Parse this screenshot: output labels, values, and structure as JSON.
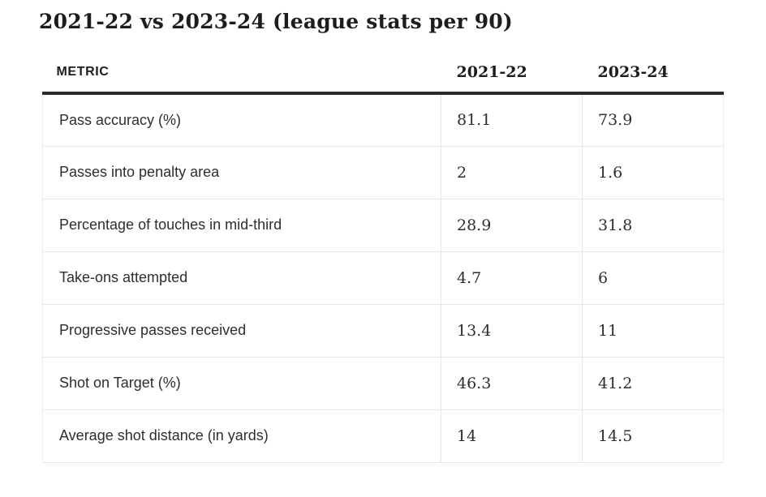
{
  "title": "2021-22 vs 2023-24 (league stats per 90)",
  "colors": {
    "background": "#ffffff",
    "title_text": "#1d1d1d",
    "header_text": "#1d1d1d",
    "cell_text": "#2e2e2e",
    "header_rule": "#2b2b2b",
    "grid_line": "#e7e7e7"
  },
  "table": {
    "columns": [
      "METRIC",
      "2021-22",
      "2023-24"
    ],
    "rows": [
      {
        "metric": "Pass accuracy (%)",
        "y2122": "81.1",
        "y2324": "73.9"
      },
      {
        "metric": "Passes into penalty area",
        "y2122": "2",
        "y2324": "1.6"
      },
      {
        "metric": "Percentage of touches in mid-third",
        "y2122": "28.9",
        "y2324": "31.8"
      },
      {
        "metric": "Take-ons attempted",
        "y2122": "4.7",
        "y2324": "6"
      },
      {
        "metric": "Progressive passes received",
        "y2122": "13.4",
        "y2324": "11"
      },
      {
        "metric": "Shot on Target (%)",
        "y2122": "46.3",
        "y2324": "41.2"
      },
      {
        "metric": "Average shot distance (in yards)",
        "y2122": "14",
        "y2324": "14.5"
      }
    ]
  },
  "chart_data": {
    "type": "table",
    "title": "2021-22 vs 2023-24 (league stats per 90)",
    "categories": [
      "Pass accuracy (%)",
      "Passes into penalty area",
      "Percentage of touches in mid-third",
      "Take-ons attempted",
      "Progressive passes received",
      "Shot on Target (%)",
      "Average shot distance (in yards)"
    ],
    "series": [
      {
        "name": "2021-22",
        "values": [
          81.1,
          2,
          28.9,
          4.7,
          13.4,
          46.3,
          14
        ]
      },
      {
        "name": "2023-24",
        "values": [
          73.9,
          1.6,
          31.8,
          6,
          11,
          41.2,
          14.5
        ]
      }
    ],
    "legend_position": "column-headers",
    "grid": true
  }
}
